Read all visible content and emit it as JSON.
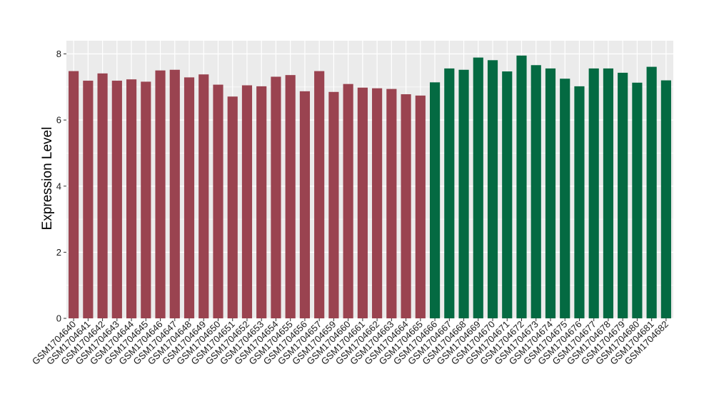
{
  "chart_data": {
    "type": "bar",
    "ylabel": "Expression Level",
    "xlabel": "",
    "ylim": [
      0,
      8.4
    ],
    "yticks": [
      0,
      2,
      4,
      6,
      8
    ],
    "grid": true,
    "legend": "none",
    "colors": {
      "group_a": "#9a4350",
      "group_b": "#046a42",
      "panel": "#ebebeb",
      "grid": "#ffffff"
    },
    "categories": [
      "GSM1704640",
      "GSM1704641",
      "GSM1704642",
      "GSM1704643",
      "GSM1704644",
      "GSM1704645",
      "GSM1704646",
      "GSM1704647",
      "GSM1704648",
      "GSM1704649",
      "GSM1704650",
      "GSM1704651",
      "GSM1704652",
      "GSM1704653",
      "GSM1704654",
      "GSM1704655",
      "GSM1704656",
      "GSM1704657",
      "GSM1704659",
      "GSM1704660",
      "GSM1704661",
      "GSM1704662",
      "GSM1704663",
      "GSM1704664",
      "GSM1704665",
      "GSM1704666",
      "GSM1704667",
      "GSM1704668",
      "GSM1704669",
      "GSM1704670",
      "GSM1704671",
      "GSM1704672",
      "GSM1704673",
      "GSM1704674",
      "GSM1704675",
      "GSM1704676",
      "GSM1704677",
      "GSM1704678",
      "GSM1704679",
      "GSM1704680",
      "GSM1704681",
      "GSM1704682"
    ],
    "values": [
      7.48,
      7.19,
      7.41,
      7.19,
      7.23,
      7.16,
      7.5,
      7.52,
      7.29,
      7.38,
      7.07,
      6.71,
      7.05,
      7.02,
      7.31,
      7.36,
      6.87,
      7.48,
      6.85,
      7.09,
      6.98,
      6.96,
      6.94,
      6.78,
      6.74,
      7.14,
      7.56,
      7.52,
      7.89,
      7.81,
      7.47,
      7.95,
      7.66,
      7.56,
      7.25,
      7.02,
      7.56,
      7.56,
      7.43,
      7.13,
      7.61,
      7.2
    ],
    "groups": [
      "a",
      "a",
      "a",
      "a",
      "a",
      "a",
      "a",
      "a",
      "a",
      "a",
      "a",
      "a",
      "a",
      "a",
      "a",
      "a",
      "a",
      "a",
      "a",
      "a",
      "a",
      "a",
      "a",
      "a",
      "a",
      "b",
      "b",
      "b",
      "b",
      "b",
      "b",
      "b",
      "b",
      "b",
      "b",
      "b",
      "b",
      "b",
      "b",
      "b",
      "b",
      "b"
    ]
  }
}
